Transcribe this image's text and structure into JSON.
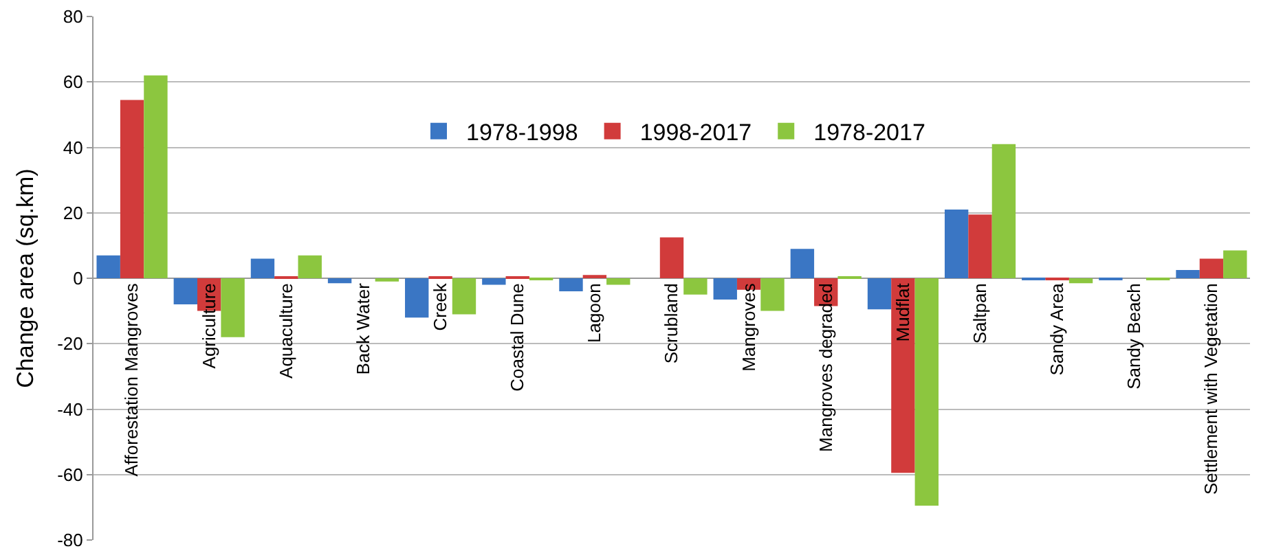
{
  "chart_data": {
    "type": "bar",
    "ylabel": "Change area (sq.km)",
    "categories": [
      "Afforestation Mangroves",
      "Agriculture",
      "Aquaculture",
      "Back Water",
      "Creek",
      "Coastal Dune",
      "Lagoon",
      "Scrubland",
      "Mangroves",
      "Mangroves degraded",
      "Mudflat",
      "Saltpan",
      "Sandy Area",
      "Sandy Beach",
      "Settlement with Vegetation"
    ],
    "series": [
      {
        "name": "1978-1998",
        "color": "#3a76c4",
        "values": [
          7,
          -8,
          6,
          -1.5,
          -12,
          -2,
          -4,
          0,
          -6.5,
          9,
          -9.5,
          21,
          -0.5,
          -0.5,
          2.5
        ]
      },
      {
        "name": "1998-2017",
        "color": "#d13b3b",
        "values": [
          54.5,
          -10,
          0.5,
          0,
          0.5,
          0.5,
          1,
          12.5,
          -3.5,
          -8.5,
          -59.5,
          19.5,
          -0.5,
          0,
          6
        ]
      },
      {
        "name": "1978-2017",
        "color": "#8cc63f",
        "values": [
          62,
          -18,
          7,
          -1,
          -11,
          -0.5,
          -2,
          -5,
          -10,
          0.5,
          -69.5,
          41,
          -1.5,
          -0.5,
          8.5
        ]
      }
    ],
    "ylim": [
      -80,
      80
    ],
    "yticks": [
      -80,
      -60,
      -40,
      -20,
      0,
      20,
      40,
      60,
      80
    ],
    "grid": "y",
    "legend": "top"
  }
}
